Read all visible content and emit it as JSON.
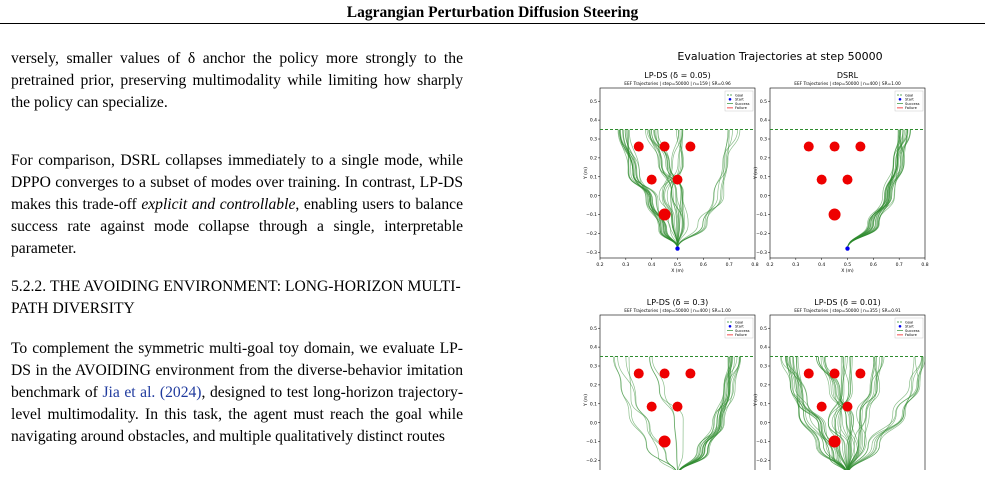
{
  "header": {
    "title": "Lagrangian Perturbation Diffusion Steering"
  },
  "body": {
    "p1": "versely, smaller values of δ anchor the policy more strongly to the pretrained prior, preserving multimodality while limiting how sharply the policy can specialize.",
    "p2_start": "For comparison, DSRL collapses immediately to a single mode, while DPPO converges to a subset of modes over training. In contrast, LP-DS makes this trade-off ",
    "p2_emph": "explicit and controllable",
    "p2_end": ", enabling users to balance success rate against mode collapse through a single, interpretable parameter.",
    "section_number": "5.2.2.",
    "section_title": "THE AVOIDING ENVIRONMENT: LONG-HORIZON MULTI-PATH DIVERSITY",
    "p3_start": "To complement the symmetric multi-goal toy domain, we evaluate LP-DS in the AVOIDING environment from the diverse-behavior imitation benchmark of ",
    "p3_cite": "Jia et al. (2024)",
    "p3_end": ", designed to test long-horizon trajectory-level multimodality. In this task, the agent must reach the goal while navigating around obstacles, and multiple qualitatively distinct routes"
  },
  "figure": {
    "suptitle": "Evaluation Trajectories at step 50000",
    "colors": {
      "trajectory": "#2e8b2e",
      "obstacle": "#ee0000",
      "start": "#0000ee",
      "goal_line": "#2e8b2e"
    },
    "legend": [
      "Goal",
      "Start",
      "Success",
      "Failure"
    ],
    "xticks": [
      "0.2",
      "0.3",
      "0.4",
      "0.5",
      "0.6",
      "0.7",
      "0.8"
    ],
    "yticks": [
      "0.5",
      "0.4",
      "0.3",
      "0.2",
      "0.1",
      "0.0",
      "−0.1",
      "−0.2",
      "−0.3"
    ],
    "xlabel": "X (m)",
    "ylabel": "Y (m)",
    "panels": [
      {
        "title": "LP-DS (δ = 0.05)",
        "subtitle": "EEF Trajectories | step=50000 | n=159 | SR=0.96"
      },
      {
        "title": "DSRL",
        "subtitle": "EEF Trajectories | step=50000 | n=400 | SR=1.00"
      },
      {
        "title": "LP-DS (δ = 0.3)",
        "subtitle": "EEF Trajectories | step=50000 | n=400 | SR=1.00"
      },
      {
        "title": "LP-DS (δ = 0.01)",
        "subtitle": "EEF Trajectories | step=50000 | n=355 | SR=0.91"
      }
    ]
  }
}
